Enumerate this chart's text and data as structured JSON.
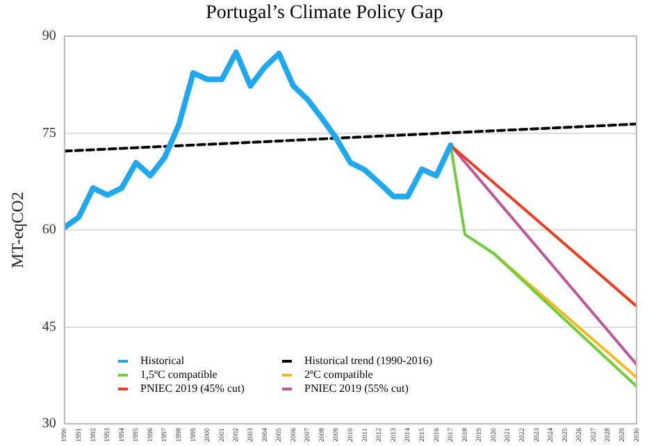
{
  "chart_data": {
    "type": "line",
    "title": "Portugal’s Climate Policy Gap",
    "ylabel": "MT-eqCO2",
    "xlim": [
      1990,
      2030
    ],
    "xticks": [
      1990,
      1991,
      1992,
      1993,
      1994,
      1995,
      1996,
      1997,
      1998,
      1999,
      2000,
      2001,
      2002,
      2003,
      2004,
      2005,
      2006,
      2007,
      2008,
      2009,
      2010,
      2011,
      2012,
      2013,
      2014,
      2015,
      2016,
      2017,
      2018,
      2019,
      2020,
      2021,
      2022,
      2023,
      2024,
      2025,
      2026,
      2027,
      2028,
      2029,
      2030
    ],
    "ylim": [
      30,
      90
    ],
    "yticks": [
      30,
      45,
      60,
      75,
      90
    ],
    "grid": "y",
    "legend": "bottom left",
    "marker": "none",
    "series": [
      {
        "name": "Historical",
        "color": "#1ea8f0",
        "x": [
          1990,
          1991,
          1992,
          1993,
          1994,
          1995,
          1996,
          1997,
          1998,
          1999,
          2000,
          2001,
          2002,
          2003,
          2004,
          2005,
          2006,
          2007,
          2008,
          2009,
          2010,
          2011,
          2012,
          2013,
          2014,
          2015,
          2016,
          2017
        ],
        "values": [
          60.4,
          62,
          66.5,
          65.4,
          66.5,
          70.4,
          68.4,
          71.2,
          76.3,
          84.3,
          83.3,
          83.3,
          87.5,
          82.3,
          85.2,
          87.3,
          82.3,
          80.2,
          77.3,
          74.2,
          70.4,
          69.3,
          67.3,
          65.2,
          65.2,
          69.4,
          68.4,
          73.1
        ]
      },
      {
        "name": "Historical trend (1990-2016)",
        "color": "#000000",
        "line_style": "dashed",
        "x": [
          1990,
          2030
        ],
        "values": [
          72.2,
          76.4
        ]
      },
      {
        "name": "1,5ºC compatible",
        "color": "#6fcf3a",
        "x": [
          2017,
          2018,
          2020,
          2030
        ],
        "values": [
          73.1,
          59.3,
          56.4,
          35.8
        ]
      },
      {
        "name": "2ºC compatible",
        "color": "#f5b91c",
        "x": [
          2020,
          2030
        ],
        "values": [
          56.4,
          37.2
        ]
      },
      {
        "name": "PNIEC 2019 (45% cut)",
        "color": "#f23a1f",
        "x": [
          2017,
          2030
        ],
        "values": [
          73.1,
          48.2
        ]
      },
      {
        "name": "PNIEC 2019 (55% cut)",
        "color": "#c0569a",
        "x": [
          2017,
          2030
        ],
        "values": [
          73.1,
          39.2
        ]
      }
    ]
  }
}
